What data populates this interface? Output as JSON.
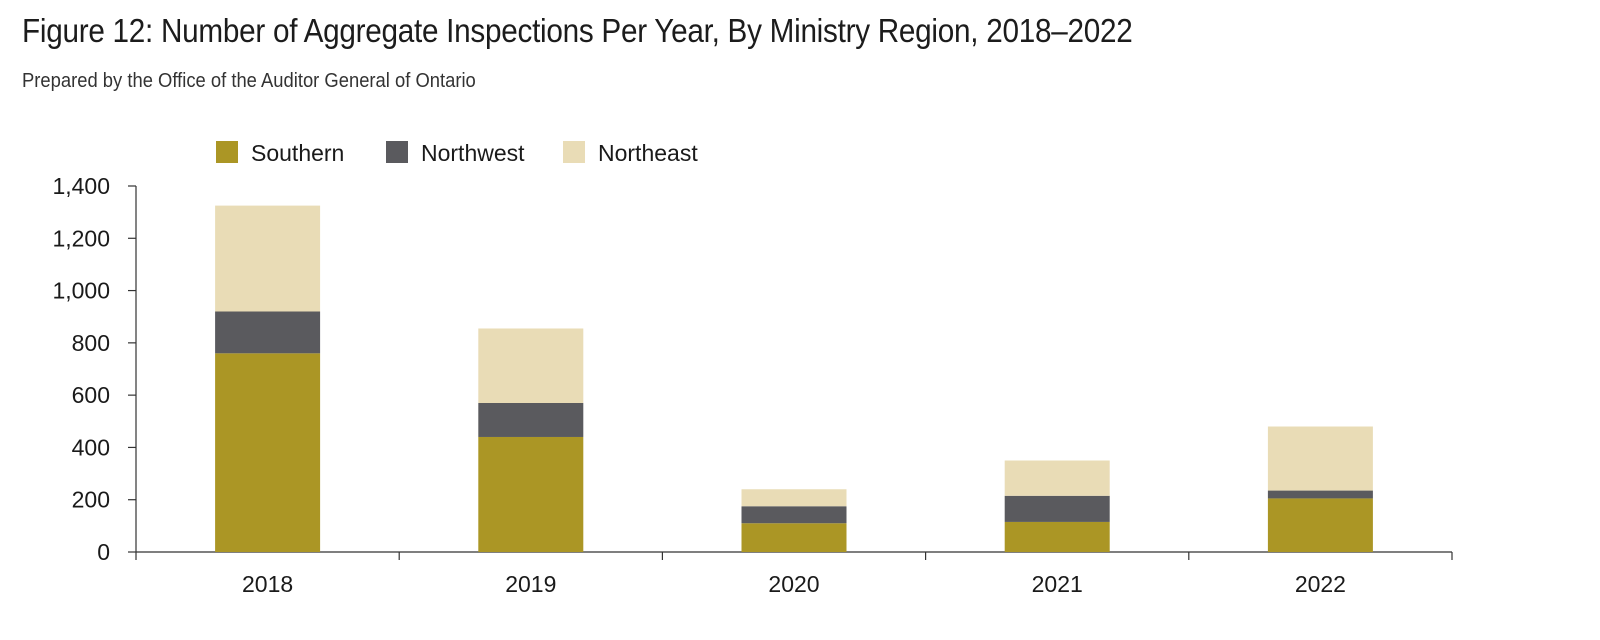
{
  "header": {
    "title": "Figure 12: Number of Aggregate Inspections Per Year, By Ministry Region, 2018–2022",
    "subtitle": "Prepared by the Office of the Auditor General of Ontario"
  },
  "chart_data": {
    "type": "bar",
    "stacked": true,
    "categories": [
      "2018",
      "2019",
      "2020",
      "2021",
      "2022"
    ],
    "series": [
      {
        "name": "Southern",
        "color": "#ab9625",
        "values": [
          760,
          440,
          110,
          115,
          205
        ]
      },
      {
        "name": "Northwest",
        "color": "#5a5a5e",
        "values": [
          160,
          130,
          65,
          100,
          30
        ]
      },
      {
        "name": "Northeast",
        "color": "#e9dcb6",
        "values": [
          405,
          285,
          65,
          135,
          245
        ]
      }
    ],
    "ylim": [
      0,
      1400
    ],
    "yticks": [
      0,
      200,
      400,
      600,
      800,
      1000,
      1200,
      1400
    ],
    "ytick_labels": [
      "0",
      "200",
      "400",
      "600",
      "800",
      "1,000",
      "1,200",
      "1,400"
    ],
    "xlabel": "",
    "ylabel": "",
    "grid": false,
    "legend": "top-left"
  }
}
